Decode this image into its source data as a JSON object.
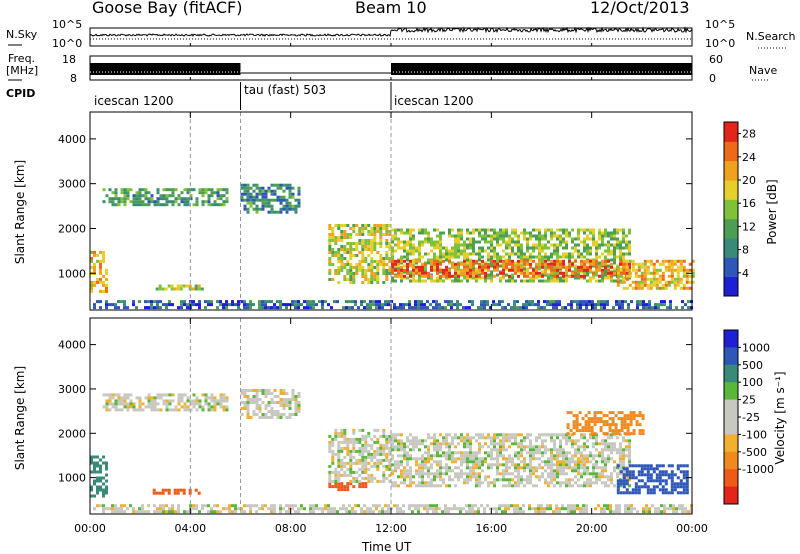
{
  "header": {
    "station": "Goose Bay (fitACF)",
    "beam": "Beam 10",
    "date": "12/Oct/2013"
  },
  "top_panels": {
    "nsky_label": "N.Sky",
    "nsky_ticks": [
      "10^5",
      "10^0"
    ],
    "nsearch_label": "N.Search",
    "nsearch_ticks": [
      "10^5",
      "10^0"
    ],
    "freq_label": "Freq.",
    "freq_unit": "[MHz]",
    "freq_ticks": [
      "18",
      "8"
    ],
    "nave_label": "Nave",
    "nave_ticks": [
      "60",
      "0"
    ],
    "cpid_label": "CPID",
    "cpid_segments": [
      {
        "label": "icescan 1200",
        "start_hr": 0,
        "end_hr": 6
      },
      {
        "label": "tau (fast) 503",
        "start_hr": 6,
        "end_hr": 12
      },
      {
        "label": "icescan 1200",
        "start_hr": 12,
        "end_hr": 24
      }
    ]
  },
  "colors": {
    "power_scale": [
      "#1f1fd6",
      "#2f57b8",
      "#3a8a7a",
      "#4d9e55",
      "#7fc23a",
      "#e6cf2a",
      "#f0a21e",
      "#ee6a18",
      "#e3251c"
    ],
    "velocity_scale": [
      "#e3251c",
      "#ee5a18",
      "#f08a1e",
      "#f2b030",
      "#c8c8c0",
      "#c8c8c0",
      "#59b83a",
      "#3a8a7a",
      "#2f57b8",
      "#1f1fd6"
    ]
  },
  "chart_data": [
    {
      "type": "heatmap",
      "name": "power",
      "xlabel": "",
      "ylabel": "Slant Range [km]",
      "xlim_hours": [
        0,
        24
      ],
      "ylim_km": [
        180,
        4600
      ],
      "y_ticks": [
        "1000",
        "2000",
        "3000",
        "4000"
      ],
      "colorbar_label": "Power [dB]",
      "colorbar_ticks": [
        "4",
        "8",
        "12",
        "16",
        "20",
        "24",
        "28"
      ],
      "colorbar_range": [
        0,
        30
      ],
      "regions": [
        {
          "x": [
            0.5,
            5.5
          ],
          "y": [
            2550,
            2900
          ],
          "level": 11
        },
        {
          "x": [
            6.0,
            8.3
          ],
          "y": [
            2350,
            3000
          ],
          "level": 9
        },
        {
          "x": [
            0.0,
            0.6
          ],
          "y": [
            600,
            1500
          ],
          "level": 20
        },
        {
          "x": [
            2.5,
            4.5
          ],
          "y": [
            620,
            750
          ],
          "level": 17
        },
        {
          "x": [
            9.5,
            12.0
          ],
          "y": [
            800,
            2100
          ],
          "level": 17
        },
        {
          "x": [
            12.0,
            21.5
          ],
          "y": [
            800,
            2000
          ],
          "level": 15
        },
        {
          "x": [
            12.0,
            21.5
          ],
          "y": [
            950,
            1300
          ],
          "level": 25
        },
        {
          "x": [
            21.0,
            24.0
          ],
          "y": [
            650,
            1300
          ],
          "level": 20
        },
        {
          "x": [
            0.0,
            24.0
          ],
          "y": [
            200,
            400
          ],
          "level": 6
        }
      ]
    },
    {
      "type": "heatmap",
      "name": "velocity",
      "xlabel": "Time UT",
      "ylabel": "Slant Range [km]",
      "xlim_hours": [
        0,
        24
      ],
      "x_ticks": [
        "00:00",
        "04:00",
        "08:00",
        "12:00",
        "16:00",
        "20:00",
        "00:00"
      ],
      "ylim_km": [
        180,
        4600
      ],
      "y_ticks": [
        "1000",
        "2000",
        "3000",
        "4000"
      ],
      "colorbar_label": "Velocity [m s⁻¹]",
      "colorbar_ticks": [
        "1000",
        "500",
        "100",
        "25",
        "-25",
        "-100",
        "-500",
        "-1000"
      ],
      "regions": [
        {
          "x": [
            0.5,
            5.5
          ],
          "y": [
            2550,
            2900
          ],
          "velocity": 0
        },
        {
          "x": [
            6.0,
            8.3
          ],
          "y": [
            2350,
            3000
          ],
          "velocity": 0
        },
        {
          "x": [
            0.0,
            0.6
          ],
          "y": [
            600,
            1500
          ],
          "velocity": 100
        },
        {
          "x": [
            2.5,
            4.5
          ],
          "y": [
            620,
            750
          ],
          "velocity": -300
        },
        {
          "x": [
            9.5,
            11.0
          ],
          "y": [
            700,
            900
          ],
          "velocity": -300
        },
        {
          "x": [
            9.5,
            12.0
          ],
          "y": [
            900,
            2100
          ],
          "velocity": 0
        },
        {
          "x": [
            12.0,
            21.5
          ],
          "y": [
            800,
            2000
          ],
          "velocity": 0
        },
        {
          "x": [
            21.0,
            23.8
          ],
          "y": [
            650,
            1300
          ],
          "velocity": 300
        },
        {
          "x": [
            19.0,
            22.0
          ],
          "y": [
            2000,
            2500
          ],
          "velocity": -200
        },
        {
          "x": [
            0.0,
            24.0
          ],
          "y": [
            200,
            400
          ],
          "velocity": 0
        }
      ]
    }
  ]
}
